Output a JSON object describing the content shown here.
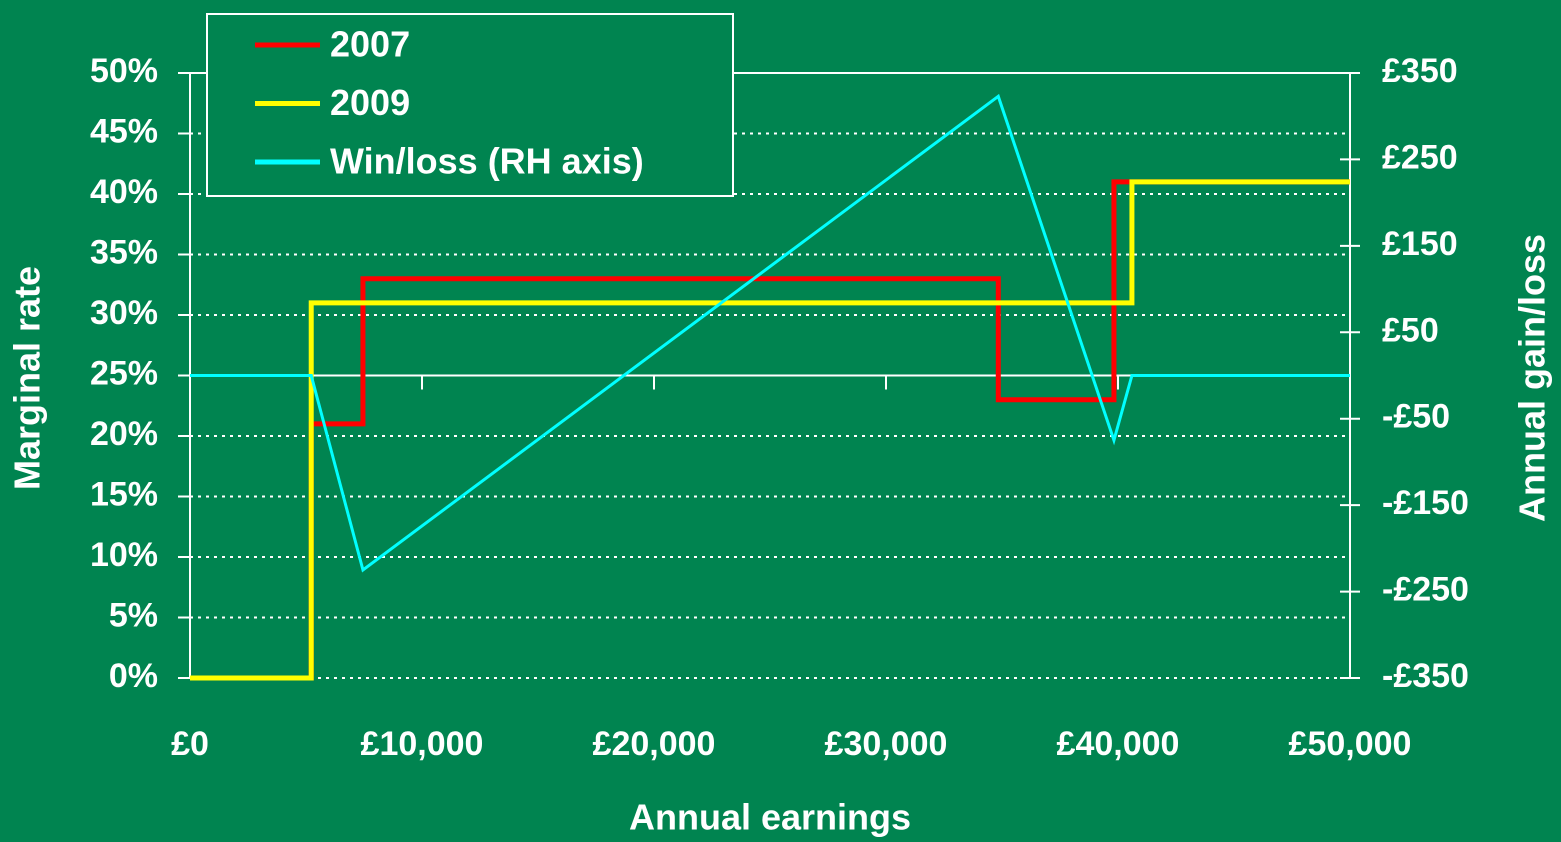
{
  "chart_data": {
    "type": "line",
    "x_label": "Annual earnings",
    "y_label": "Marginal rate",
    "y2_label": "Annual gain/loss",
    "xlim": [
      0,
      50000
    ],
    "xticks": [
      {
        "value": 0,
        "label": "£0"
      },
      {
        "value": 10000,
        "label": "£10,000"
      },
      {
        "value": 20000,
        "label": "£20,000"
      },
      {
        "value": 30000,
        "label": "£30,000"
      },
      {
        "value": 40000,
        "label": "£40,000"
      },
      {
        "value": 50000,
        "label": "£50,000"
      }
    ],
    "ylim": [
      0,
      50
    ],
    "yticks": [
      {
        "value": 0,
        "label": "0%"
      },
      {
        "value": 5,
        "label": "5%"
      },
      {
        "value": 10,
        "label": "10%"
      },
      {
        "value": 15,
        "label": "15%"
      },
      {
        "value": 20,
        "label": "20%"
      },
      {
        "value": 25,
        "label": "25%"
      },
      {
        "value": 30,
        "label": "30%"
      },
      {
        "value": 35,
        "label": "35%"
      },
      {
        "value": 40,
        "label": "40%"
      },
      {
        "value": 45,
        "label": "45%"
      },
      {
        "value": 50,
        "label": "50%"
      }
    ],
    "y2lim": [
      -350,
      350
    ],
    "y2ticks": [
      {
        "value": -350,
        "label": "-£350"
      },
      {
        "value": -250,
        "label": "-£250"
      },
      {
        "value": -150,
        "label": "-£150"
      },
      {
        "value": -50,
        "label": "-£50"
      },
      {
        "value": 50,
        "label": "£50"
      },
      {
        "value": 150,
        "label": "£150"
      },
      {
        "value": 250,
        "label": "£250"
      },
      {
        "value": 350,
        "label": "£350"
      }
    ],
    "grid": true,
    "legend": "top-left",
    "series": [
      {
        "name": "2007",
        "color": "#ff0000",
        "x": [
          0,
          5225,
          5225,
          7455,
          7455,
          34840,
          34840,
          39825,
          39825,
          50000
        ],
        "values": [
          0,
          0,
          21,
          21,
          33,
          33,
          23,
          23,
          41,
          41
        ]
      },
      {
        "name": "2009",
        "color": "#ffff00",
        "x": [
          0,
          5225,
          5225,
          40600,
          40600,
          50000
        ],
        "values": [
          0,
          0,
          31,
          31,
          41,
          41
        ]
      },
      {
        "name": "Win/loss (RH axis)",
        "color": "#00ffff",
        "axis": "y2",
        "x": [
          0,
          5225,
          7455,
          34840,
          39825,
          40600,
          50000
        ],
        "values": [
          0,
          0,
          -225,
          323,
          -75,
          0,
          0
        ]
      }
    ]
  }
}
